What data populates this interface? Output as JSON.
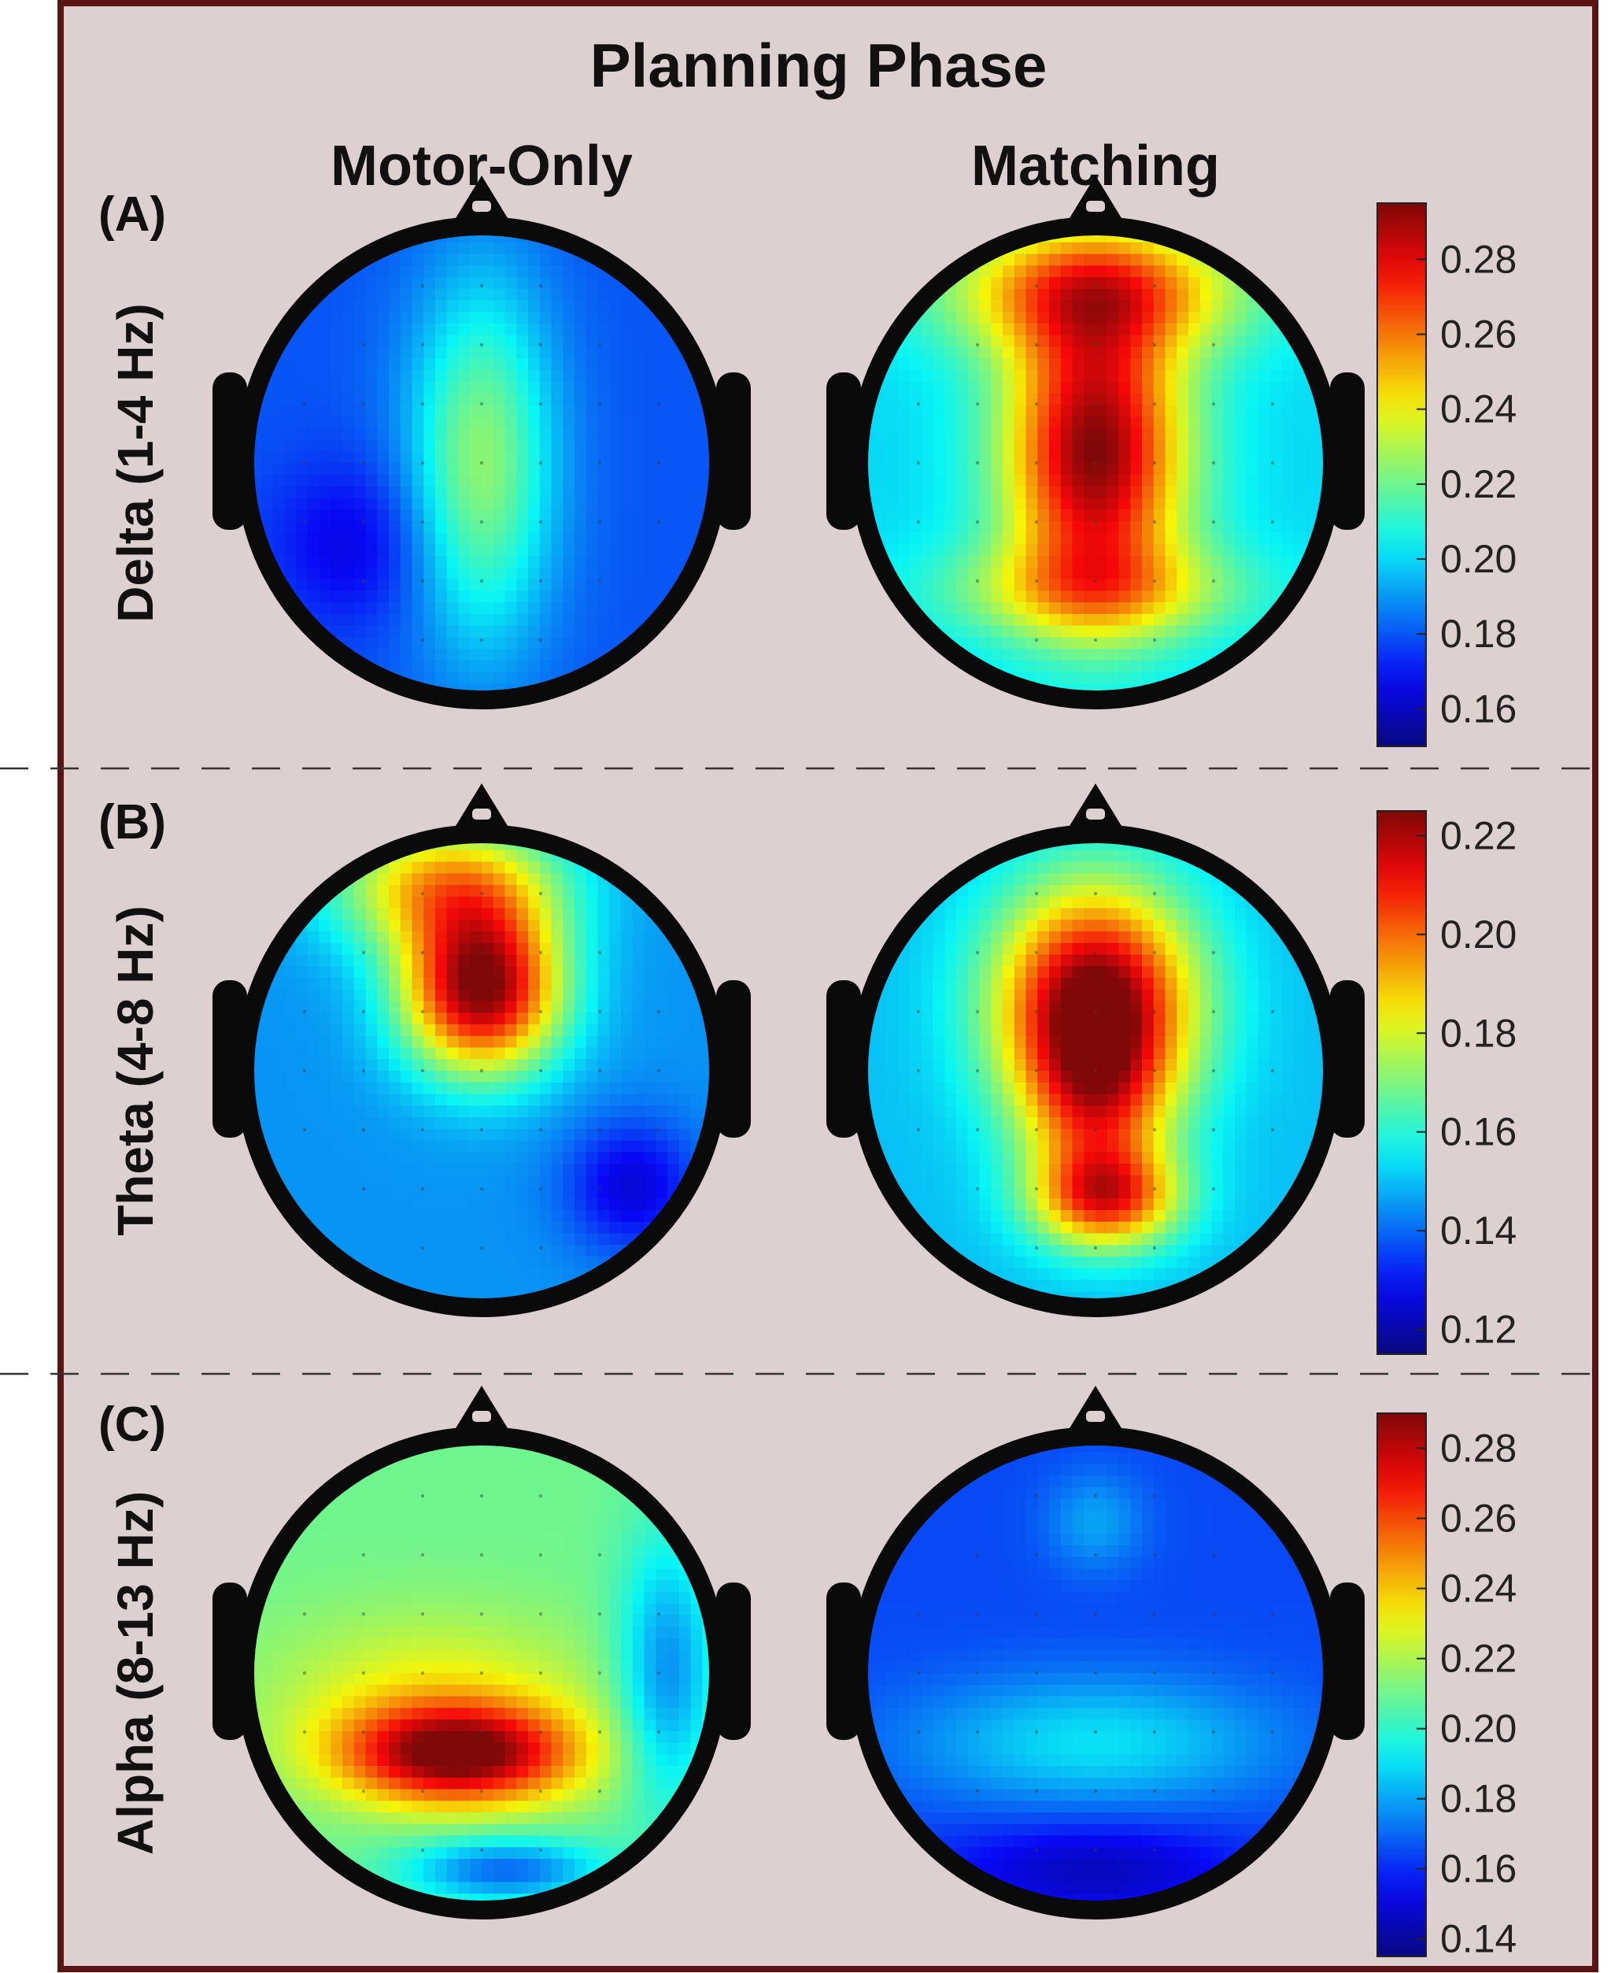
{
  "figure": {
    "title": "Planning Phase",
    "columns": [
      "Motor-Only",
      "Matching"
    ],
    "panel_background": "#dcd0d0",
    "frame_color": "#5a1414",
    "colormap": "jet"
  },
  "chart_data": [
    {
      "type": "heatmap",
      "panel": "(A)",
      "row_label": "Delta (1-4 Hz)",
      "colorbar": {
        "ticks": [
          "0.16",
          "0.18",
          "0.20",
          "0.22",
          "0.24",
          "0.26",
          "0.28"
        ],
        "range": [
          0.15,
          0.295
        ]
      },
      "maps": [
        {
          "condition": "Motor-Only",
          "background": 0.18,
          "peak": 0.225,
          "blobs": [
            {
              "x": 0.0,
              "y": 0.0,
              "sx": 0.22,
              "sy": 0.55,
              "amp": 0.045
            },
            {
              "x": -0.55,
              "y": -0.35,
              "sx": 0.25,
              "sy": 0.25,
              "amp": -0.015
            }
          ]
        },
        {
          "condition": "Matching",
          "background": 0.2,
          "peak": 0.295,
          "blobs": [
            {
              "x": 0.0,
              "y": 0.05,
              "sx": 0.27,
              "sy": 0.45,
              "amp": 0.095
            },
            {
              "x": 0.0,
              "y": 0.75,
              "sx": 0.45,
              "sy": 0.2,
              "amp": 0.06
            },
            {
              "x": 0.0,
              "y": -0.55,
              "sx": 0.45,
              "sy": 0.15,
              "amp": 0.035
            }
          ]
        }
      ]
    },
    {
      "type": "heatmap",
      "panel": "(B)",
      "row_label": "Theta (4-8 Hz)",
      "colorbar": {
        "ticks": [
          "0.12",
          "0.14",
          "0.16",
          "0.18",
          "0.20",
          "0.22"
        ],
        "range": [
          0.115,
          0.225
        ]
      },
      "maps": [
        {
          "condition": "Motor-Only",
          "background": 0.145,
          "peak": 0.225,
          "blobs": [
            {
              "x": 0.0,
              "y": 0.35,
              "sx": 0.24,
              "sy": 0.25,
              "amp": 0.08
            },
            {
              "x": -0.15,
              "y": 0.8,
              "sx": 0.35,
              "sy": 0.2,
              "amp": 0.045
            },
            {
              "x": 0.65,
              "y": -0.5,
              "sx": 0.2,
              "sy": 0.2,
              "amp": -0.02
            }
          ]
        },
        {
          "condition": "Matching",
          "background": 0.15,
          "peak": 0.225,
          "blobs": [
            {
              "x": 0.0,
              "y": 0.3,
              "sx": 0.3,
              "sy": 0.35,
              "amp": 0.075
            },
            {
              "x": 0.05,
              "y": -0.55,
              "sx": 0.22,
              "sy": 0.15,
              "amp": 0.05
            },
            {
              "x": 0.0,
              "y": -0.15,
              "sx": 0.22,
              "sy": 0.3,
              "amp": 0.035
            }
          ]
        }
      ]
    },
    {
      "type": "heatmap",
      "panel": "(C)",
      "row_label": "Alpha (8-13 Hz)",
      "colorbar": {
        "ticks": [
          "0.14",
          "0.16",
          "0.18",
          "0.20",
          "0.22",
          "0.24",
          "0.26",
          "0.28"
        ],
        "range": [
          0.135,
          0.29
        ]
      },
      "maps": [
        {
          "condition": "Motor-Only",
          "background": 0.21,
          "peak": 0.29,
          "blobs": [
            {
              "x": -0.1,
              "y": -0.35,
              "sx": 0.35,
              "sy": 0.15,
              "amp": 0.08
            },
            {
              "x": -0.2,
              "y": -0.1,
              "sx": 0.5,
              "sy": 0.25,
              "amp": 0.02
            },
            {
              "x": 0.8,
              "y": 0.0,
              "sx": 0.15,
              "sy": 0.4,
              "amp": -0.035
            },
            {
              "x": 0.1,
              "y": -0.85,
              "sx": 0.3,
              "sy": 0.1,
              "amp": -0.04
            }
          ]
        },
        {
          "condition": "Matching",
          "background": 0.165,
          "peak": 0.2,
          "blobs": [
            {
              "x": 0.0,
              "y": -0.3,
              "sx": 0.55,
              "sy": 0.2,
              "amp": 0.025
            },
            {
              "x": 0.0,
              "y": 0.65,
              "sx": 0.15,
              "sy": 0.15,
              "amp": 0.015
            },
            {
              "x": 0.0,
              "y": -0.85,
              "sx": 0.45,
              "sy": 0.15,
              "amp": -0.02
            }
          ]
        }
      ]
    }
  ]
}
